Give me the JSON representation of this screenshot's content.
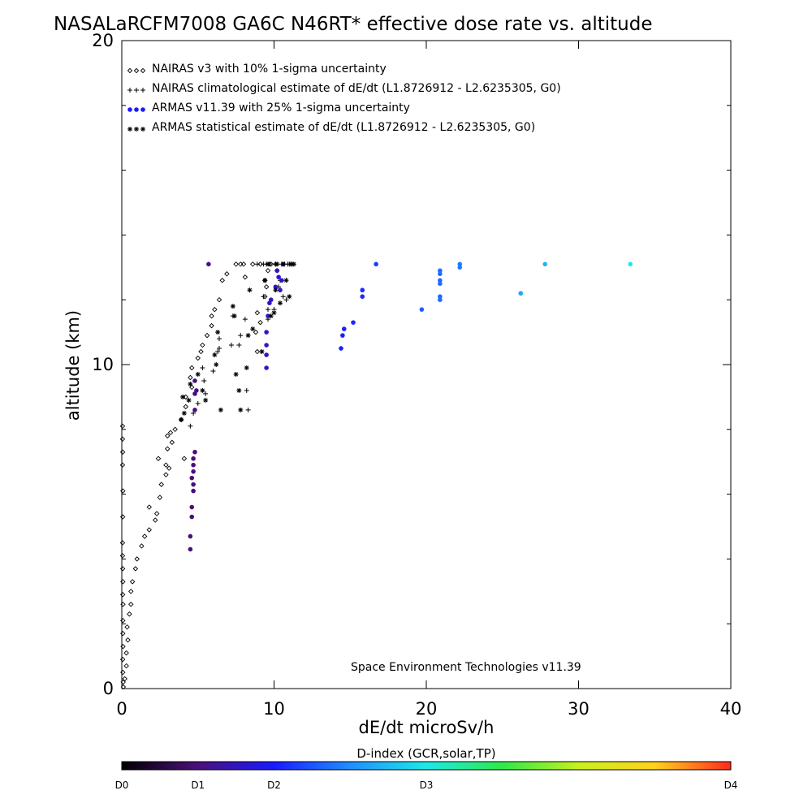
{
  "chart_data": {
    "type": "scatter",
    "title": "NASALaRCFM7008  GA6C N46RT* effective dose rate vs. altitude",
    "xlabel": "dE/dt microSv/h",
    "ylabel": "altitude (km)",
    "xlim": [
      0,
      40
    ],
    "ylim": [
      0,
      20
    ],
    "x_ticks": [
      0,
      10,
      20,
      30,
      40
    ],
    "y_ticks": [
      0,
      10,
      20
    ],
    "legend_position": "top-left",
    "credit": "Space Environment Technologies v11.39",
    "colorbar": {
      "title": "D-index (GCR,solar,TP)",
      "labels": [
        {
          "text": "D0",
          "pos": 0.0
        },
        {
          "text": "D1",
          "pos": 0.125
        },
        {
          "text": "D2",
          "pos": 0.25
        },
        {
          "text": "D3",
          "pos": 0.5
        },
        {
          "text": "D4",
          "pos": 1.0
        }
      ],
      "stops": [
        {
          "pos": 0.0,
          "color": "#000000"
        },
        {
          "pos": 0.125,
          "color": "#4b0f7a"
        },
        {
          "pos": 0.25,
          "color": "#1a1aff"
        },
        {
          "pos": 0.375,
          "color": "#1f8fff"
        },
        {
          "pos": 0.5,
          "color": "#1ee8e8"
        },
        {
          "pos": 0.625,
          "color": "#2ee84a"
        },
        {
          "pos": 0.75,
          "color": "#c8f01e"
        },
        {
          "pos": 0.875,
          "color": "#ffd21e"
        },
        {
          "pos": 1.0,
          "color": "#ff2a1e"
        }
      ]
    },
    "series": [
      {
        "name": "NAIRAS v3 with 10% 1-sigma uncertainty",
        "marker": "diamond",
        "points": [
          [
            0.05,
            8.1
          ],
          [
            0.05,
            7.7
          ],
          [
            0.06,
            7.3
          ],
          [
            0.05,
            6.9
          ],
          [
            0.07,
            6.1
          ],
          [
            0.06,
            5.3
          ],
          [
            0.05,
            4.5
          ],
          [
            0.05,
            4.1
          ],
          [
            0.06,
            3.7
          ],
          [
            0.07,
            3.3
          ],
          [
            0.06,
            2.9
          ],
          [
            0.08,
            2.6
          ],
          [
            0.07,
            2.1
          ],
          [
            0.07,
            1.7
          ],
          [
            0.08,
            1.3
          ],
          [
            0.06,
            0.9
          ],
          [
            0.07,
            0.5
          ],
          [
            0.09,
            0.2
          ],
          [
            0.1,
            0.05
          ],
          [
            0.2,
            0.3
          ],
          [
            0.3,
            0.7
          ],
          [
            0.3,
            1.1
          ],
          [
            0.4,
            1.5
          ],
          [
            0.35,
            1.9
          ],
          [
            0.5,
            2.3
          ],
          [
            0.6,
            2.6
          ],
          [
            0.6,
            3.0
          ],
          [
            0.7,
            3.3
          ],
          [
            0.9,
            3.7
          ],
          [
            1.0,
            4.0
          ],
          [
            1.3,
            4.4
          ],
          [
            1.5,
            4.7
          ],
          [
            1.8,
            4.9
          ],
          [
            2.2,
            5.2
          ],
          [
            2.3,
            5.4
          ],
          [
            1.8,
            5.6
          ],
          [
            2.5,
            5.9
          ],
          [
            2.6,
            6.3
          ],
          [
            2.9,
            6.6
          ],
          [
            3.1,
            6.8
          ],
          [
            2.9,
            6.9
          ],
          [
            2.4,
            7.1
          ],
          [
            3.0,
            7.4
          ],
          [
            3.3,
            7.6
          ],
          [
            3.0,
            7.8
          ],
          [
            3.2,
            7.9
          ],
          [
            3.5,
            8.0
          ],
          [
            3.9,
            8.3
          ],
          [
            4.1,
            7.1
          ],
          [
            4.2,
            8.7
          ],
          [
            4.2,
            9.0
          ],
          [
            4.6,
            9.3
          ],
          [
            4.5,
            9.6
          ],
          [
            4.6,
            9.9
          ],
          [
            5.0,
            10.2
          ],
          [
            5.2,
            10.4
          ],
          [
            5.3,
            10.6
          ],
          [
            5.6,
            10.9
          ],
          [
            5.9,
            11.2
          ],
          [
            5.9,
            11.5
          ],
          [
            6.1,
            11.7
          ],
          [
            6.4,
            12.0
          ],
          [
            6.6,
            12.6
          ],
          [
            6.9,
            12.8
          ],
          [
            7.5,
            13.1
          ],
          [
            7.8,
            13.1
          ],
          [
            8.0,
            13.1
          ],
          [
            8.1,
            12.7
          ],
          [
            8.6,
            13.1
          ],
          [
            8.8,
            11.0
          ],
          [
            8.9,
            10.4
          ],
          [
            8.9,
            11.6
          ],
          [
            9.1,
            11.3
          ],
          [
            9.1,
            13.1
          ],
          [
            9.4,
            12.1
          ],
          [
            9.4,
            12.6
          ],
          [
            9.5,
            12.4
          ],
          [
            9.6,
            12.9
          ],
          [
            9.7,
            13.1
          ],
          [
            9.8,
            13.1
          ],
          [
            10.1,
            13.1
          ]
        ]
      },
      {
        "name": "NAIRAS climatological estimate of dE/dt (L1.8726912 - L2.6235305, G0)",
        "marker": "plus",
        "points": [
          [
            4.5,
            8.1
          ],
          [
            4.7,
            8.5
          ],
          [
            5.0,
            8.8
          ],
          [
            5.5,
            9.1
          ],
          [
            5.4,
            9.5
          ],
          [
            5.3,
            9.9
          ],
          [
            6.0,
            9.8
          ],
          [
            6.3,
            10.4
          ],
          [
            6.4,
            10.5
          ],
          [
            6.4,
            10.8
          ],
          [
            7.2,
            10.6
          ],
          [
            7.3,
            11.5
          ],
          [
            7.7,
            10.6
          ],
          [
            7.8,
            10.9
          ],
          [
            8.1,
            11.4
          ],
          [
            8.2,
            9.2
          ],
          [
            8.3,
            8.6
          ],
          [
            8.9,
            13.1
          ],
          [
            9.3,
            13.1
          ],
          [
            9.3,
            12.1
          ],
          [
            9.5,
            13.1
          ],
          [
            9.6,
            11.4
          ],
          [
            9.6,
            11.7
          ],
          [
            10.0,
            11.7
          ],
          [
            10.1,
            13.1
          ],
          [
            10.2,
            12.9
          ],
          [
            10.3,
            12.4
          ],
          [
            10.4,
            12.6
          ],
          [
            10.5,
            13.1
          ],
          [
            10.6,
            12.1
          ],
          [
            10.7,
            13.1
          ],
          [
            10.8,
            12.0
          ],
          [
            10.9,
            13.1
          ],
          [
            11.0,
            13.1
          ],
          [
            11.1,
            13.1
          ],
          [
            11.2,
            13.1
          ]
        ]
      },
      {
        "name": "ARMAS v11.39 with 25% 1-sigma uncertainty",
        "marker": "dot",
        "points": [
          [
            4.5,
            4.3
          ],
          [
            4.5,
            4.7
          ],
          [
            4.6,
            5.3
          ],
          [
            4.6,
            5.6
          ],
          [
            4.7,
            6.1
          ],
          [
            4.7,
            6.3
          ],
          [
            4.6,
            6.5
          ],
          [
            4.7,
            6.7
          ],
          [
            4.7,
            6.9
          ],
          [
            4.7,
            7.1
          ],
          [
            4.8,
            7.3
          ],
          [
            4.8,
            8.6
          ],
          [
            4.8,
            9.1
          ],
          [
            4.9,
            9.2
          ],
          [
            4.8,
            9.5
          ],
          [
            9.5,
            9.9
          ],
          [
            9.5,
            10.3
          ],
          [
            9.5,
            10.6
          ],
          [
            9.5,
            11.0
          ],
          [
            9.6,
            11.5
          ],
          [
            9.7,
            11.9
          ],
          [
            9.8,
            12.0
          ],
          [
            10.1,
            12.4
          ],
          [
            10.2,
            12.9
          ],
          [
            10.3,
            12.7
          ],
          [
            10.4,
            12.3
          ],
          [
            10.5,
            12.6
          ],
          [
            10.6,
            13.1
          ],
          [
            5.7,
            13.1
          ],
          [
            14.4,
            10.5
          ],
          [
            14.5,
            10.9
          ],
          [
            14.6,
            11.1
          ],
          [
            15.2,
            11.3
          ],
          [
            15.8,
            12.1
          ],
          [
            15.8,
            12.3
          ],
          [
            16.7,
            13.1
          ],
          [
            19.7,
            11.7
          ],
          [
            20.9,
            12.0
          ],
          [
            20.9,
            12.1
          ],
          [
            20.9,
            12.5
          ],
          [
            20.9,
            12.6
          ],
          [
            20.9,
            12.8
          ],
          [
            20.9,
            12.9
          ],
          [
            22.2,
            13.0
          ],
          [
            22.2,
            13.1
          ],
          [
            26.2,
            12.2
          ],
          [
            27.8,
            13.1
          ],
          [
            33.4,
            13.1
          ]
        ]
      },
      {
        "name": "ARMAS statistical estimate of dE/dt (L1.8726912 - L2.6235305, G0)",
        "marker": "star",
        "points": [
          [
            3.9,
            8.3
          ],
          [
            4.0,
            9.0
          ],
          [
            4.1,
            8.5
          ],
          [
            4.4,
            8.9
          ],
          [
            4.5,
            9.4
          ],
          [
            5.0,
            9.7
          ],
          [
            5.3,
            9.2
          ],
          [
            5.5,
            8.9
          ],
          [
            6.1,
            10.3
          ],
          [
            6.2,
            10.0
          ],
          [
            6.3,
            11.0
          ],
          [
            6.5,
            8.6
          ],
          [
            7.3,
            11.8
          ],
          [
            7.4,
            11.5
          ],
          [
            7.5,
            9.7
          ],
          [
            7.7,
            9.2
          ],
          [
            7.8,
            8.6
          ],
          [
            8.2,
            9.9
          ],
          [
            8.3,
            10.9
          ],
          [
            8.4,
            12.3
          ],
          [
            8.6,
            11.1
          ],
          [
            9.2,
            10.4
          ],
          [
            9.4,
            12.6
          ],
          [
            9.6,
            13.1
          ],
          [
            9.8,
            11.5
          ],
          [
            10.0,
            11.6
          ],
          [
            10.1,
            12.3
          ],
          [
            10.2,
            13.1
          ],
          [
            10.4,
            11.9
          ],
          [
            10.6,
            13.1
          ],
          [
            10.8,
            12.6
          ],
          [
            11.0,
            12.1
          ],
          [
            11.1,
            13.1
          ],
          [
            11.2,
            13.1
          ],
          [
            11.3,
            13.1
          ]
        ]
      }
    ]
  }
}
